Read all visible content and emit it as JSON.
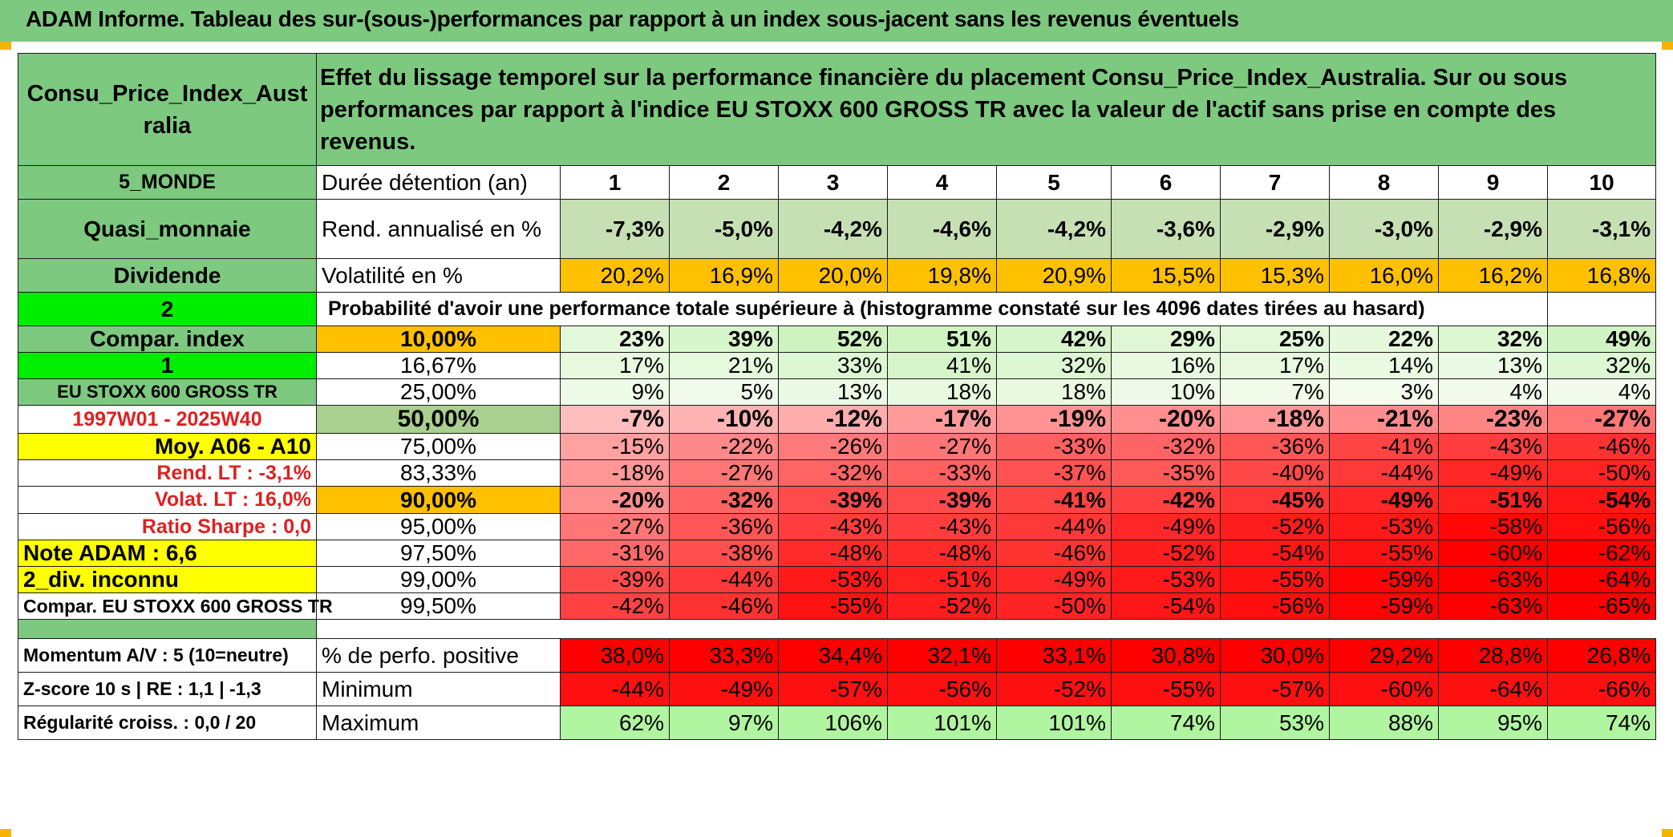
{
  "title": "ADAM Informe. Tableau des sur-(sous-)performances par rapport à un index sous-jacent sans les revenus éventuels",
  "asset_name": "Consu_Price_Index_Australia",
  "description": "Effet du lissage temporel sur la performance financière du placement Consu_Price_Index_Australia. Sur ou sous performances par rapport à l'indice EU STOXX 600 GROSS TR avec la valeur de l'actif sans prise en compte des revenus.",
  "side": {
    "zone": "5_MONDE",
    "type": "Quasi_monnaie",
    "dividend": "Dividende",
    "dividend_code": "2",
    "compar_label": "Compar. index",
    "compar_code": "1",
    "index_name": "EU STOXX 600 GROSS TR",
    "period": "1997W01 - 2025W40",
    "moy": "Moy. A06 - A10",
    "rend_lt": "Rend. LT :   -3,1%",
    "volat_lt": "Volat. LT :   16,0%",
    "sharpe": "Ratio Sharpe :    0,0",
    "note": "Note ADAM : 6,6",
    "div": "2_div. inconnu",
    "compar_full": "Compar. EU STOXX 600 GROSS TR",
    "momentum": "Momentum A/V : 5 (10=neutre)",
    "zscore": "Z-score 10 s | RE : 1,1 | -1,3",
    "regularite": "Régularité croiss. : 0,0 / 20"
  },
  "labels": {
    "duree": "Durée détention (an)",
    "rend": "Rend. annualisé en %",
    "vol": "Volatilité en %",
    "proba": "Probabilité d'avoir une performance totale supérieure à (histogramme constaté sur les 4096 dates tirées au hasard)",
    "pos": "% de perfo. positive",
    "min": "Minimum",
    "max": "Maximum"
  },
  "years": [
    "1",
    "2",
    "3",
    "4",
    "5",
    "6",
    "7",
    "8",
    "9",
    "10"
  ],
  "rend": [
    "-7,3%",
    "-5,0%",
    "-4,2%",
    "-4,6%",
    "-4,2%",
    "-3,6%",
    "-2,9%",
    "-3,0%",
    "-2,9%",
    "-3,1%"
  ],
  "vol": [
    "20,2%",
    "16,9%",
    "20,0%",
    "19,8%",
    "20,9%",
    "15,5%",
    "15,3%",
    "16,0%",
    "16,2%",
    "16,8%"
  ],
  "percentile_rows": [
    {
      "p": "10,00%",
      "v": [
        "23%",
        "39%",
        "52%",
        "51%",
        "42%",
        "29%",
        "25%",
        "22%",
        "32%",
        "49%"
      ]
    },
    {
      "p": "16,67%",
      "v": [
        "17%",
        "21%",
        "33%",
        "41%",
        "32%",
        "16%",
        "17%",
        "14%",
        "13%",
        "32%"
      ]
    },
    {
      "p": "25,00%",
      "v": [
        "9%",
        "5%",
        "13%",
        "18%",
        "18%",
        "10%",
        "7%",
        "3%",
        "4%",
        "4%"
      ]
    },
    {
      "p": "50,00%",
      "v": [
        "-7%",
        "-10%",
        "-12%",
        "-17%",
        "-19%",
        "-20%",
        "-18%",
        "-21%",
        "-23%",
        "-27%"
      ]
    },
    {
      "p": "75,00%",
      "v": [
        "-15%",
        "-22%",
        "-26%",
        "-27%",
        "-33%",
        "-32%",
        "-36%",
        "-41%",
        "-43%",
        "-46%"
      ]
    },
    {
      "p": "83,33%",
      "v": [
        "-18%",
        "-27%",
        "-32%",
        "-33%",
        "-37%",
        "-35%",
        "-40%",
        "-44%",
        "-49%",
        "-50%"
      ]
    },
    {
      "p": "90,00%",
      "v": [
        "-20%",
        "-32%",
        "-39%",
        "-39%",
        "-41%",
        "-42%",
        "-45%",
        "-49%",
        "-51%",
        "-54%"
      ]
    },
    {
      "p": "95,00%",
      "v": [
        "-27%",
        "-36%",
        "-43%",
        "-43%",
        "-44%",
        "-49%",
        "-52%",
        "-53%",
        "-58%",
        "-56%"
      ]
    },
    {
      "p": "97,50%",
      "v": [
        "-31%",
        "-38%",
        "-48%",
        "-48%",
        "-46%",
        "-52%",
        "-54%",
        "-55%",
        "-60%",
        "-62%"
      ]
    },
    {
      "p": "99,00%",
      "v": [
        "-39%",
        "-44%",
        "-53%",
        "-51%",
        "-49%",
        "-53%",
        "-55%",
        "-59%",
        "-63%",
        "-64%"
      ]
    },
    {
      "p": "99,50%",
      "v": [
        "-42%",
        "-46%",
        "-55%",
        "-52%",
        "-50%",
        "-54%",
        "-56%",
        "-59%",
        "-63%",
        "-65%"
      ]
    }
  ],
  "pos": [
    "38,0%",
    "33,3%",
    "34,4%",
    "32,1%",
    "33,1%",
    "30,8%",
    "30,0%",
    "29,2%",
    "28,8%",
    "26,8%"
  ],
  "min": [
    "-44%",
    "-49%",
    "-57%",
    "-56%",
    "-52%",
    "-55%",
    "-57%",
    "-60%",
    "-64%",
    "-66%"
  ],
  "max": [
    "62%",
    "97%",
    "106%",
    "101%",
    "101%",
    "74%",
    "53%",
    "88%",
    "95%",
    "74%"
  ],
  "colors": {
    "header_green": "#7dc97f",
    "bright_green": "#00ee00",
    "yellow": "#ffff00",
    "orange": "#ffc000",
    "rend_fill": "#c6e0b4",
    "red_text": "#e02020"
  }
}
